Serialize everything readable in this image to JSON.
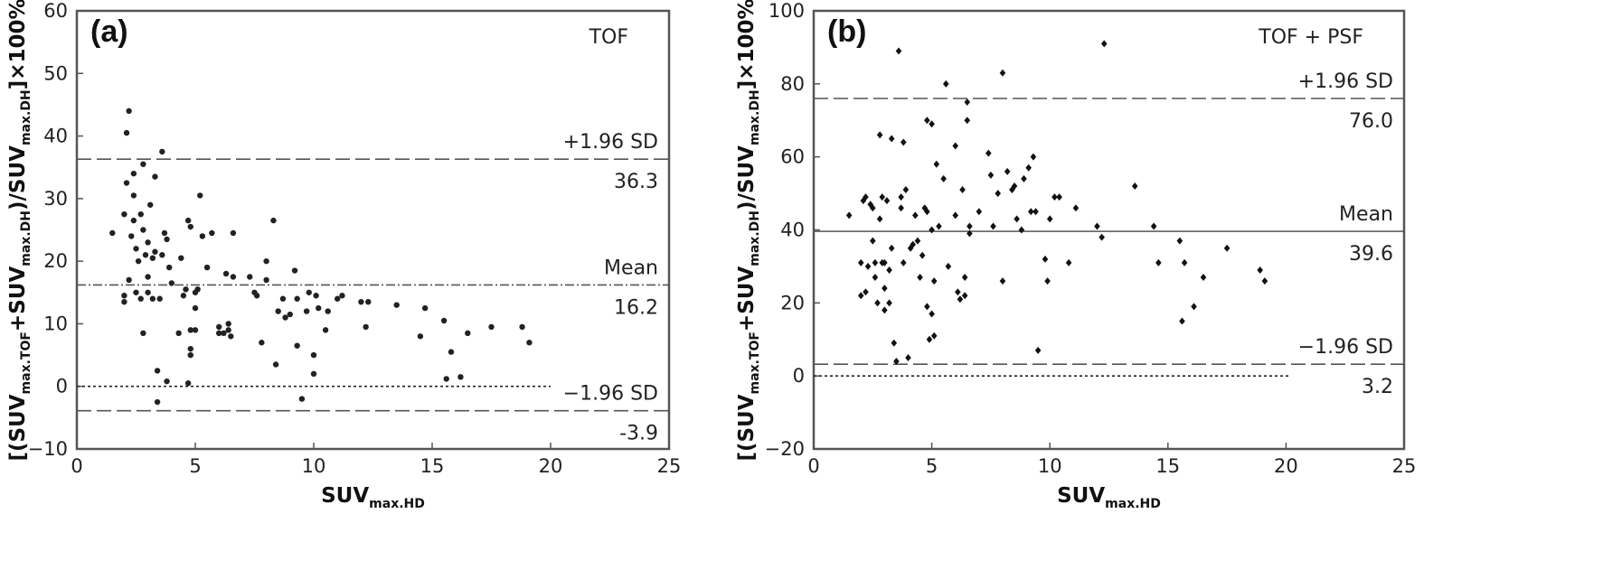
{
  "chart_data": [
    {
      "type": "scatter",
      "panel_label": "(a)",
      "method_label": "TOF",
      "xlabel": {
        "main": "SUV",
        "sub": "max.HD"
      },
      "ylabel": {
        "parts": [
          {
            "t": "[(SUV",
            "sub": false
          },
          {
            "t": "max.TOF",
            "sub": true
          },
          {
            "t": "+SUV",
            "sub": false
          },
          {
            "t": "max.DH",
            "sub": true
          },
          {
            "t": ")/SUV",
            "sub": false
          },
          {
            "t": "max.DH",
            "sub": true
          },
          {
            "t": "]×100%",
            "sub": false
          }
        ]
      },
      "xlim": [
        0,
        25
      ],
      "ylim": [
        -10,
        60
      ],
      "xticks": [
        0,
        5,
        10,
        15,
        20,
        25
      ],
      "yticks": [
        -10,
        0,
        10,
        20,
        30,
        40,
        50,
        60
      ],
      "marker": "circle",
      "reference_lines": [
        {
          "name": "+1.96 SD",
          "label": "+1.96 SD",
          "value_label": "36.3",
          "y": 36.3,
          "style": "dash",
          "x_end": 25
        },
        {
          "name": "Mean",
          "label": "Mean",
          "value_label": "16.2",
          "y": 16.2,
          "style": "dashdot",
          "x_end": 25
        },
        {
          "name": "zero",
          "label": "",
          "value_label": "",
          "y": 0,
          "style": "dot",
          "x_end": 20
        },
        {
          "name": "-1.96 SD",
          "label": "−1.96 SD",
          "value_label": "-3.9",
          "y": -3.9,
          "style": "dash",
          "x_end": 25
        }
      ],
      "points": [
        [
          1.5,
          24.5
        ],
        [
          2.0,
          27.5
        ],
        [
          2.0,
          14.5
        ],
        [
          2.0,
          13.5
        ],
        [
          2.1,
          32.5
        ],
        [
          2.1,
          40.5
        ],
        [
          2.2,
          44.0
        ],
        [
          2.2,
          17.0
        ],
        [
          2.3,
          24.0
        ],
        [
          2.4,
          34.0
        ],
        [
          2.4,
          30.5
        ],
        [
          2.4,
          26.5
        ],
        [
          2.5,
          15.0
        ],
        [
          2.5,
          22.0
        ],
        [
          2.6,
          20.0
        ],
        [
          2.7,
          27.5
        ],
        [
          2.7,
          14.0
        ],
        [
          2.8,
          35.5
        ],
        [
          2.8,
          25.0
        ],
        [
          2.8,
          8.5
        ],
        [
          2.9,
          21.0
        ],
        [
          3.0,
          23.0
        ],
        [
          3.0,
          17.5
        ],
        [
          3.0,
          15.0
        ],
        [
          3.1,
          29.0
        ],
        [
          3.2,
          20.5
        ],
        [
          3.2,
          14.0
        ],
        [
          3.3,
          33.5
        ],
        [
          3.3,
          21.5
        ],
        [
          3.4,
          2.5
        ],
        [
          3.4,
          -2.5
        ],
        [
          3.5,
          14.0
        ],
        [
          3.6,
          21.0
        ],
        [
          3.6,
          37.5
        ],
        [
          3.7,
          24.5
        ],
        [
          3.8,
          23.5
        ],
        [
          3.8,
          0.8
        ],
        [
          3.9,
          19.0
        ],
        [
          4.0,
          16.5
        ],
        [
          4.3,
          8.5
        ],
        [
          4.4,
          20.5
        ],
        [
          4.5,
          14.5
        ],
        [
          4.6,
          15.5
        ],
        [
          4.7,
          0.5
        ],
        [
          4.7,
          26.5
        ],
        [
          4.8,
          25.5
        ],
        [
          4.8,
          9.0
        ],
        [
          4.8,
          6.0
        ],
        [
          4.8,
          5.0
        ],
        [
          5.0,
          15.0
        ],
        [
          5.0,
          12.5
        ],
        [
          5.0,
          9.0
        ],
        [
          5.1,
          15.5
        ],
        [
          5.2,
          30.5
        ],
        [
          5.3,
          24.0
        ],
        [
          5.5,
          19.0
        ],
        [
          5.7,
          24.5
        ],
        [
          6.0,
          9.5
        ],
        [
          6.0,
          8.5
        ],
        [
          6.2,
          8.5
        ],
        [
          6.3,
          18.0
        ],
        [
          6.4,
          9.0
        ],
        [
          6.4,
          10.0
        ],
        [
          6.5,
          8.0
        ],
        [
          6.6,
          24.5
        ],
        [
          6.6,
          17.5
        ],
        [
          7.3,
          17.5
        ],
        [
          7.5,
          15.0
        ],
        [
          7.6,
          14.5
        ],
        [
          7.8,
          7.0
        ],
        [
          8.0,
          20.0
        ],
        [
          8.0,
          17.0
        ],
        [
          8.3,
          26.5
        ],
        [
          8.4,
          3.5
        ],
        [
          8.5,
          12.0
        ],
        [
          8.7,
          14.0
        ],
        [
          8.8,
          11.0
        ],
        [
          9.0,
          11.5
        ],
        [
          9.2,
          18.5
        ],
        [
          9.3,
          6.5
        ],
        [
          9.3,
          14.0
        ],
        [
          9.5,
          -2.0
        ],
        [
          9.7,
          12.0
        ],
        [
          9.8,
          15.0
        ],
        [
          10.0,
          5.0
        ],
        [
          10.0,
          2.0
        ],
        [
          10.1,
          14.5
        ],
        [
          10.2,
          12.5
        ],
        [
          10.5,
          9.0
        ],
        [
          10.6,
          12.0
        ],
        [
          11.0,
          14.0
        ],
        [
          11.2,
          14.5
        ],
        [
          12.0,
          13.5
        ],
        [
          12.2,
          9.5
        ],
        [
          12.3,
          13.5
        ],
        [
          13.5,
          13.0
        ],
        [
          14.5,
          8.0
        ],
        [
          14.7,
          12.5
        ],
        [
          15.5,
          10.5
        ],
        [
          15.6,
          1.2
        ],
        [
          15.8,
          5.5
        ],
        [
          16.2,
          1.5
        ],
        [
          16.5,
          8.5
        ],
        [
          17.5,
          9.5
        ],
        [
          18.8,
          9.5
        ],
        [
          19.1,
          7.0
        ]
      ]
    },
    {
      "type": "scatter",
      "panel_label": "(b)",
      "method_label": "TOF + PSF",
      "xlabel": {
        "main": "SUV",
        "sub": "max.HD"
      },
      "ylabel": {
        "parts": [
          {
            "t": "[(SUV",
            "sub": false
          },
          {
            "t": "max.TOF",
            "sub": true
          },
          {
            "t": "+SUV",
            "sub": false
          },
          {
            "t": "max.DH",
            "sub": true
          },
          {
            "t": ")/SUV",
            "sub": false
          },
          {
            "t": "max.DH",
            "sub": true
          },
          {
            "t": "]×100%",
            "sub": false
          }
        ]
      },
      "xlim": [
        0,
        25
      ],
      "ylim": [
        -20,
        100
      ],
      "xticks": [
        0,
        5,
        10,
        15,
        20,
        25
      ],
      "yticks": [
        -20,
        0,
        20,
        40,
        60,
        80,
        100
      ],
      "marker": "diamond",
      "reference_lines": [
        {
          "name": "+1.96 SD",
          "label": "+1.96 SD",
          "value_label": "76.0",
          "y": 76.0,
          "style": "dash",
          "x_end": 25
        },
        {
          "name": "Mean",
          "label": "Mean",
          "value_label": "39.6",
          "y": 39.6,
          "style": "solid",
          "x_end": 25
        },
        {
          "name": "-1.96 SD",
          "label": "−1.96 SD",
          "value_label": "3.2",
          "y": 3.2,
          "style": "dash",
          "x_end": 25
        },
        {
          "name": "zero",
          "label": "",
          "value_label": "",
          "y": 0,
          "style": "dot",
          "x_end": 20.2
        }
      ],
      "points": [
        [
          1.5,
          44
        ],
        [
          2.0,
          31
        ],
        [
          2.0,
          22
        ],
        [
          2.1,
          48
        ],
        [
          2.2,
          23
        ],
        [
          2.2,
          49
        ],
        [
          2.3,
          30
        ],
        [
          2.4,
          47
        ],
        [
          2.5,
          46
        ],
        [
          2.5,
          37
        ],
        [
          2.6,
          27
        ],
        [
          2.6,
          31
        ],
        [
          2.7,
          20
        ],
        [
          2.8,
          43
        ],
        [
          2.8,
          66
        ],
        [
          2.9,
          49
        ],
        [
          2.9,
          31
        ],
        [
          3.0,
          31
        ],
        [
          3.0,
          24
        ],
        [
          3.0,
          18
        ],
        [
          3.1,
          48
        ],
        [
          3.2,
          29
        ],
        [
          3.2,
          20
        ],
        [
          3.3,
          65
        ],
        [
          3.3,
          35
        ],
        [
          3.4,
          9
        ],
        [
          3.5,
          4
        ],
        [
          3.6,
          89
        ],
        [
          3.7,
          49
        ],
        [
          3.7,
          46
        ],
        [
          3.8,
          64
        ],
        [
          3.8,
          31
        ],
        [
          3.9,
          51
        ],
        [
          4.0,
          5
        ],
        [
          4.1,
          35
        ],
        [
          4.2,
          36
        ],
        [
          4.3,
          44
        ],
        [
          4.4,
          37
        ],
        [
          4.5,
          27
        ],
        [
          4.6,
          33
        ],
        [
          4.7,
          46
        ],
        [
          4.8,
          45
        ],
        [
          4.8,
          70
        ],
        [
          4.8,
          19
        ],
        [
          4.9,
          10
        ],
        [
          5.0,
          69
        ],
        [
          5.0,
          40
        ],
        [
          5.0,
          17
        ],
        [
          5.1,
          26
        ],
        [
          5.1,
          11
        ],
        [
          5.2,
          58
        ],
        [
          5.3,
          41
        ],
        [
          5.5,
          54
        ],
        [
          5.6,
          80
        ],
        [
          5.7,
          30
        ],
        [
          6.0,
          63
        ],
        [
          6.0,
          44
        ],
        [
          6.1,
          23
        ],
        [
          6.2,
          21
        ],
        [
          6.3,
          51
        ],
        [
          6.4,
          27
        ],
        [
          6.4,
          22
        ],
        [
          6.5,
          75
        ],
        [
          6.5,
          70
        ],
        [
          6.6,
          41
        ],
        [
          6.6,
          39
        ],
        [
          7.0,
          45
        ],
        [
          7.4,
          61
        ],
        [
          7.5,
          55
        ],
        [
          7.6,
          41
        ],
        [
          7.8,
          50
        ],
        [
          8.0,
          83
        ],
        [
          8.0,
          26
        ],
        [
          8.2,
          56
        ],
        [
          8.4,
          51
        ],
        [
          8.5,
          52
        ],
        [
          8.6,
          43
        ],
        [
          8.8,
          40
        ],
        [
          8.9,
          54
        ],
        [
          9.1,
          57
        ],
        [
          9.2,
          45
        ],
        [
          9.3,
          60
        ],
        [
          9.4,
          45
        ],
        [
          9.5,
          7
        ],
        [
          9.8,
          32
        ],
        [
          9.9,
          26
        ],
        [
          10.0,
          43
        ],
        [
          10.2,
          49
        ],
        [
          10.4,
          49
        ],
        [
          10.8,
          31
        ],
        [
          11.1,
          46
        ],
        [
          12.0,
          41
        ],
        [
          12.2,
          38
        ],
        [
          12.3,
          91
        ],
        [
          13.6,
          52
        ],
        [
          14.4,
          41
        ],
        [
          14.6,
          31
        ],
        [
          15.5,
          37
        ],
        [
          15.6,
          15
        ],
        [
          15.7,
          31
        ],
        [
          16.1,
          19
        ],
        [
          16.5,
          27
        ],
        [
          17.5,
          35
        ],
        [
          18.9,
          29
        ],
        [
          19.1,
          26
        ]
      ]
    }
  ]
}
